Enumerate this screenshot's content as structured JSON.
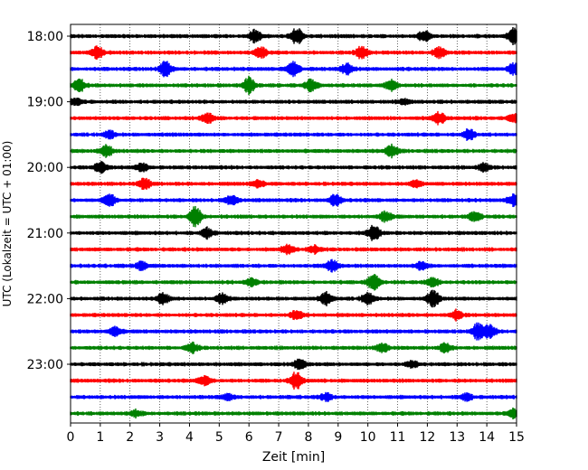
{
  "chart_data": {
    "type": "line",
    "title": "",
    "xlabel": "Zeit  [min]",
    "ylabel": "UTC (Lokalzeit = UTC + 01:00)",
    "xlim": [
      0,
      15
    ],
    "x_ticks": [
      0,
      1,
      2,
      3,
      4,
      5,
      6,
      7,
      8,
      9,
      10,
      11,
      12,
      13,
      14,
      15
    ],
    "y_ticks": [
      "18:00",
      "19:00",
      "20:00",
      "21:00",
      "22:00",
      "23:00"
    ],
    "grid": "vertical dotted at each minute",
    "trace_colors": [
      "#000000",
      "#ff0000",
      "#0000ff",
      "#008000"
    ],
    "minutes_per_trace": 15,
    "traces": [
      {
        "start": "18:00",
        "bursts": [
          [
            6.2,
            1.0
          ],
          [
            7.6,
            1.4
          ],
          [
            11.9,
            1.0
          ],
          [
            14.9,
            1.3
          ]
        ]
      },
      {
        "start": "18:15",
        "bursts": [
          [
            0.9,
            1.0
          ],
          [
            6.4,
            0.9
          ],
          [
            9.8,
            1.0
          ],
          [
            12.4,
            0.8
          ]
        ]
      },
      {
        "start": "18:30",
        "bursts": [
          [
            3.2,
            1.2
          ],
          [
            7.5,
            1.3
          ],
          [
            9.3,
            0.8
          ],
          [
            14.9,
            1.0
          ]
        ]
      },
      {
        "start": "18:45",
        "bursts": [
          [
            0.3,
            1.0
          ],
          [
            6.0,
            1.3
          ],
          [
            8.1,
            1.0
          ],
          [
            10.8,
            0.8
          ]
        ]
      },
      {
        "start": "19:00",
        "bursts": [
          [
            0.2,
            0.5
          ],
          [
            11.2,
            0.4
          ]
        ]
      },
      {
        "start": "19:15",
        "bursts": [
          [
            4.6,
            0.8
          ],
          [
            12.4,
            0.9
          ],
          [
            14.9,
            0.7
          ]
        ]
      },
      {
        "start": "19:30",
        "bursts": [
          [
            1.3,
            0.6
          ],
          [
            13.4,
            0.9
          ]
        ]
      },
      {
        "start": "19:45",
        "bursts": [
          [
            1.2,
            1.0
          ],
          [
            10.8,
            1.0
          ]
        ]
      },
      {
        "start": "20:00",
        "bursts": [
          [
            1.0,
            0.9
          ],
          [
            2.4,
            0.6
          ],
          [
            13.9,
            0.6
          ]
        ]
      },
      {
        "start": "20:15",
        "bursts": [
          [
            2.5,
            0.9
          ],
          [
            6.3,
            0.6
          ],
          [
            11.6,
            0.5
          ]
        ]
      },
      {
        "start": "20:30",
        "bursts": [
          [
            1.3,
            1.1
          ],
          [
            5.4,
            0.8
          ],
          [
            8.9,
            0.9
          ],
          [
            14.9,
            0.9
          ]
        ]
      },
      {
        "start": "20:45",
        "bursts": [
          [
            4.2,
            1.6
          ],
          [
            10.6,
            0.8
          ],
          [
            13.6,
            0.7
          ]
        ]
      },
      {
        "start": "21:00",
        "bursts": [
          [
            4.6,
            0.8
          ],
          [
            10.2,
            1.2
          ]
        ]
      },
      {
        "start": "21:15",
        "bursts": [
          [
            7.3,
            0.7
          ],
          [
            8.2,
            0.6
          ]
        ]
      },
      {
        "start": "21:30",
        "bursts": [
          [
            2.4,
            0.6
          ],
          [
            8.8,
            0.9
          ],
          [
            11.8,
            0.6
          ]
        ]
      },
      {
        "start": "21:45",
        "bursts": [
          [
            6.1,
            0.6
          ],
          [
            10.2,
            1.3
          ],
          [
            12.2,
            0.7
          ]
        ]
      },
      {
        "start": "22:00",
        "bursts": [
          [
            3.1,
            0.9
          ],
          [
            5.1,
            0.8
          ],
          [
            8.6,
            1.0
          ],
          [
            10.0,
            1.0
          ],
          [
            12.2,
            1.3
          ]
        ]
      },
      {
        "start": "22:15",
        "bursts": [
          [
            7.6,
            0.8
          ],
          [
            13.0,
            0.8
          ]
        ]
      },
      {
        "start": "22:30",
        "bursts": [
          [
            1.5,
            0.7
          ],
          [
            13.7,
            1.3
          ],
          [
            14.1,
            1.0
          ]
        ]
      },
      {
        "start": "22:45",
        "bursts": [
          [
            4.1,
            0.8
          ],
          [
            10.5,
            0.7
          ],
          [
            12.6,
            0.7
          ]
        ]
      },
      {
        "start": "23:00",
        "bursts": [
          [
            7.7,
            0.8
          ],
          [
            11.5,
            0.6
          ]
        ]
      },
      {
        "start": "23:15",
        "bursts": [
          [
            4.5,
            0.8
          ],
          [
            7.6,
            1.4
          ]
        ]
      },
      {
        "start": "23:30",
        "bursts": [
          [
            5.3,
            0.5
          ],
          [
            8.6,
            0.6
          ],
          [
            13.3,
            0.6
          ]
        ]
      },
      {
        "start": "23:45",
        "bursts": [
          [
            2.2,
            0.5
          ],
          [
            14.9,
            0.8
          ]
        ]
      }
    ]
  }
}
